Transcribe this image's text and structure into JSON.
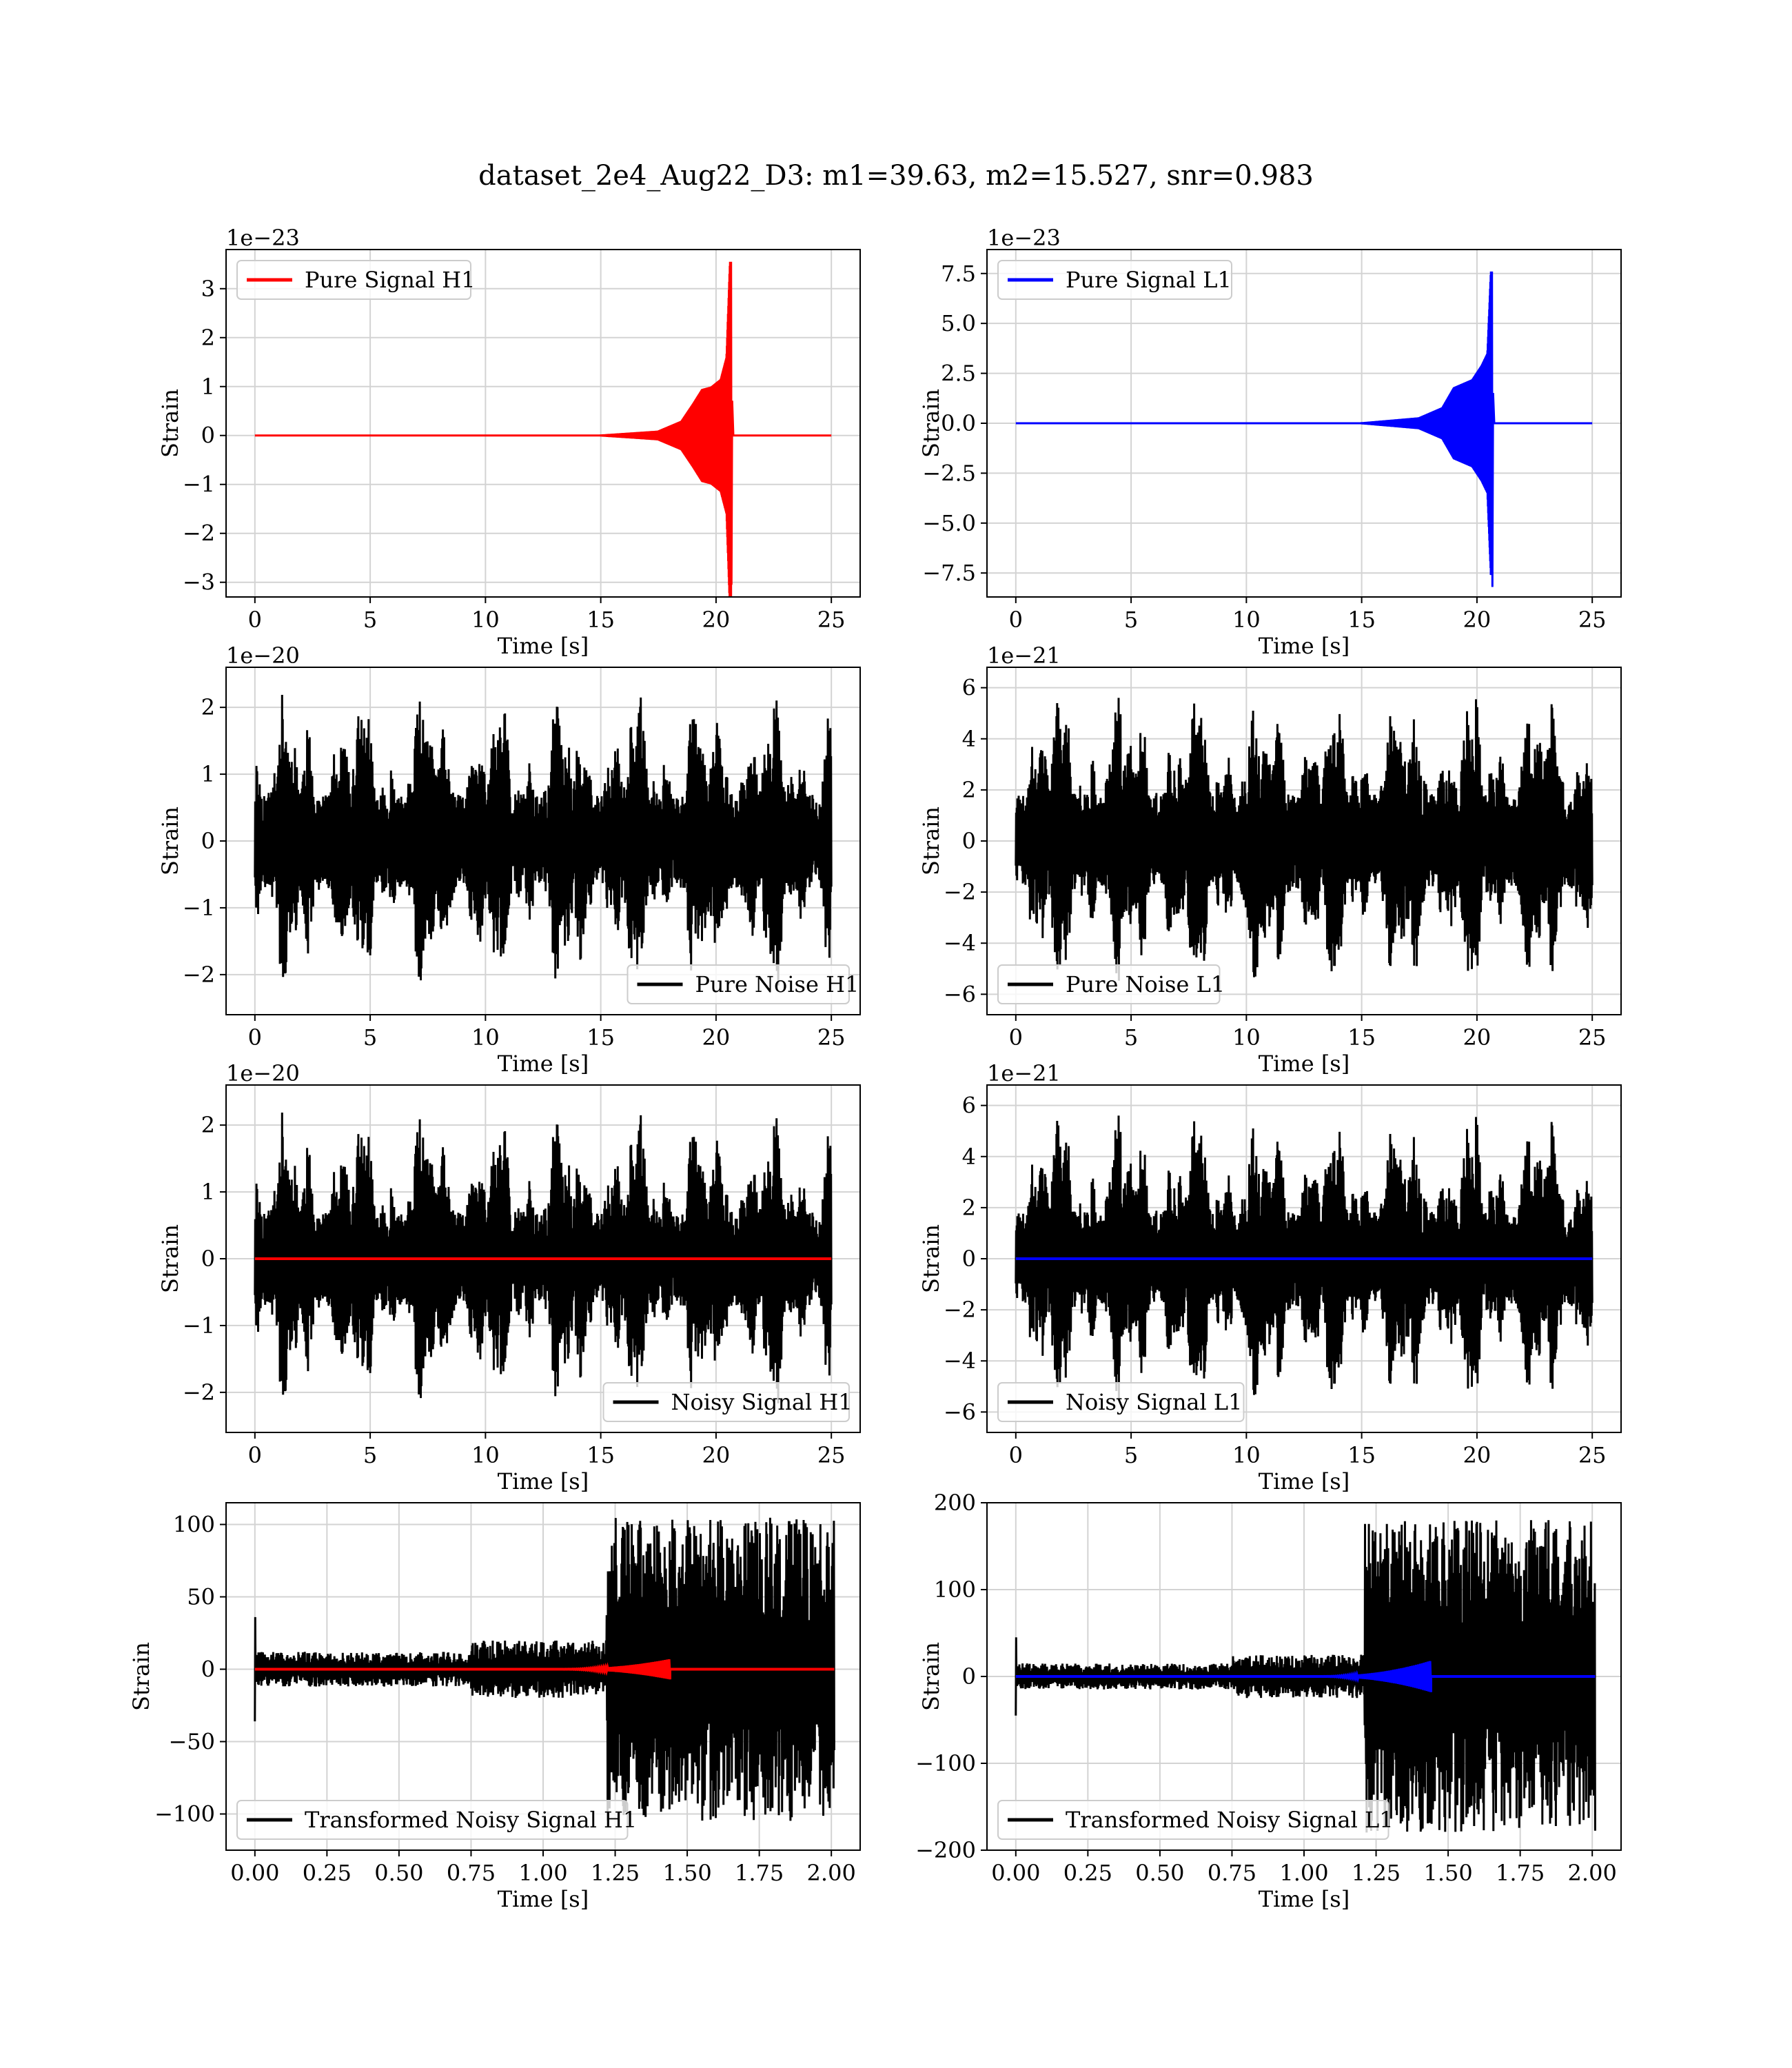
{
  "figure": {
    "title": "dataset_2e4_Aug22_D3: m1=39.63, m2=15.527, snr=0.983"
  },
  "colors": {
    "h1_signal": "#ff0000",
    "l1_signal": "#0000ff",
    "noise": "#000000",
    "grid": "#d3d3d3",
    "axes": "#000000",
    "background": "#ffffff"
  },
  "chart_data": [
    {
      "id": "pure-signal-h1",
      "type": "line",
      "kind": "chirp",
      "xlabel": "Time [s]",
      "ylabel": "Strain",
      "offset_text": "1e−23",
      "xlim": [
        -1.25,
        26.25
      ],
      "ylim": [
        -3.3,
        3.8
      ],
      "xticks": [
        0,
        5,
        10,
        15,
        20,
        25
      ],
      "xtick_labels": [
        "0",
        "5",
        "10",
        "15",
        "20",
        "25"
      ],
      "yticks": [
        -3,
        -2,
        -1,
        0,
        1,
        2,
        3
      ],
      "ytick_labels": [
        "−3",
        "−2",
        "−1",
        "0",
        "1",
        "2",
        "3"
      ],
      "legend_loc": "upper left",
      "grid": true,
      "series": [
        {
          "name": "Pure Signal H1",
          "color": "#ff0000",
          "x_start": 0,
          "x_end": 25,
          "merger": 20.65,
          "ringdown_end": 20.75,
          "peak_pos": 3.55,
          "peak_neg": -3.05,
          "envelope": [
            [
              15,
              0.02
            ],
            [
              17.5,
              0.1
            ],
            [
              18.5,
              0.3
            ],
            [
              19.0,
              0.65
            ],
            [
              19.4,
              0.95
            ],
            [
              19.8,
              1.0
            ],
            [
              20.2,
              1.15
            ],
            [
              20.45,
              1.6
            ],
            [
              20.6,
              3.55
            ]
          ]
        }
      ]
    },
    {
      "id": "pure-signal-l1",
      "type": "line",
      "kind": "chirp",
      "xlabel": "Time [s]",
      "ylabel": "Strain",
      "offset_text": "1e−23",
      "xlim": [
        -1.25,
        26.25
      ],
      "ylim": [
        -8.7,
        8.7
      ],
      "xticks": [
        0,
        5,
        10,
        15,
        20,
        25
      ],
      "xtick_labels": [
        "0",
        "5",
        "10",
        "15",
        "20",
        "25"
      ],
      "yticks": [
        -7.5,
        -5.0,
        -2.5,
        0.0,
        2.5,
        5.0,
        7.5
      ],
      "ytick_labels": [
        "−7.5",
        "−5.0",
        "−2.5",
        "0.0",
        "2.5",
        "5.0",
        "7.5"
      ],
      "legend_loc": "upper left",
      "grid": true,
      "series": [
        {
          "name": "Pure Signal L1",
          "color": "#0000ff",
          "x_start": 0,
          "x_end": 25,
          "merger": 20.65,
          "ringdown_end": 20.75,
          "peak_pos": 7.6,
          "peak_neg": -8.2,
          "envelope": [
            [
              15,
              0.05
            ],
            [
              17.5,
              0.3
            ],
            [
              18.5,
              0.8
            ],
            [
              19.0,
              1.8
            ],
            [
              19.4,
              2.0
            ],
            [
              19.8,
              2.2
            ],
            [
              20.2,
              2.9
            ],
            [
              20.45,
              3.5
            ],
            [
              20.6,
              7.6
            ]
          ]
        }
      ]
    },
    {
      "id": "pure-noise-h1",
      "type": "line",
      "kind": "noise",
      "xlabel": "Time [s]",
      "ylabel": "Strain",
      "offset_text": "1e−20",
      "xlim": [
        -1.25,
        26.25
      ],
      "ylim": [
        -2.6,
        2.6
      ],
      "xticks": [
        0,
        5,
        10,
        15,
        20,
        25
      ],
      "xtick_labels": [
        "0",
        "5",
        "10",
        "15",
        "20",
        "25"
      ],
      "yticks": [
        -2,
        -1,
        0,
        1,
        2
      ],
      "ytick_labels": [
        "−2",
        "−1",
        "0",
        "1",
        "2"
      ],
      "legend_loc": "lower right",
      "grid": true,
      "series": [
        {
          "name": "Pure Noise H1",
          "color": "#000000",
          "x_start": 0,
          "x_end": 25,
          "amp": 2.35,
          "seed": 11
        }
      ]
    },
    {
      "id": "pure-noise-l1",
      "type": "line",
      "kind": "noise",
      "xlabel": "Time [s]",
      "ylabel": "Strain",
      "offset_text": "1e−21",
      "xlim": [
        -1.25,
        26.25
      ],
      "ylim": [
        -6.8,
        6.8
      ],
      "xticks": [
        0,
        5,
        10,
        15,
        20,
        25
      ],
      "xtick_labels": [
        "0",
        "5",
        "10",
        "15",
        "20",
        "25"
      ],
      "yticks": [
        -6,
        -4,
        -2,
        0,
        2,
        4,
        6
      ],
      "ytick_labels": [
        "−6",
        "−4",
        "−2",
        "0",
        "2",
        "4",
        "6"
      ],
      "legend_loc": "lower left",
      "grid": true,
      "series": [
        {
          "name": "Pure Noise L1",
          "color": "#000000",
          "x_start": 0,
          "x_end": 25,
          "amp": 6.3,
          "seed": 23
        }
      ]
    },
    {
      "id": "noisy-signal-h1",
      "type": "line",
      "kind": "noise",
      "xlabel": "Time [s]",
      "ylabel": "Strain",
      "offset_text": "1e−20",
      "xlim": [
        -1.25,
        26.25
      ],
      "ylim": [
        -2.6,
        2.6
      ],
      "xticks": [
        0,
        5,
        10,
        15,
        20,
        25
      ],
      "xtick_labels": [
        "0",
        "5",
        "10",
        "15",
        "20",
        "25"
      ],
      "yticks": [
        -2,
        -1,
        0,
        1,
        2
      ],
      "ytick_labels": [
        "−2",
        "−1",
        "0",
        "1",
        "2"
      ],
      "legend_loc": "lower right",
      "grid": true,
      "series": [
        {
          "name": "Noisy Signal H1",
          "color": "#000000",
          "x_start": 0,
          "x_end": 25,
          "amp": 2.35,
          "seed": 11
        },
        {
          "color": "#ff0000",
          "x_start": 0,
          "x_end": 25,
          "flat": 0
        }
      ]
    },
    {
      "id": "noisy-signal-l1",
      "type": "line",
      "kind": "noise",
      "xlabel": "Time [s]",
      "ylabel": "Strain",
      "offset_text": "1e−21",
      "xlim": [
        -1.25,
        26.25
      ],
      "ylim": [
        -6.8,
        6.8
      ],
      "xticks": [
        0,
        5,
        10,
        15,
        20,
        25
      ],
      "xtick_labels": [
        "0",
        "5",
        "10",
        "15",
        "20",
        "25"
      ],
      "yticks": [
        -6,
        -4,
        -2,
        0,
        2,
        4,
        6
      ],
      "ytick_labels": [
        "−6",
        "−4",
        "−2",
        "0",
        "2",
        "4",
        "6"
      ],
      "legend_loc": "lower left",
      "grid": true,
      "series": [
        {
          "name": "Noisy Signal L1",
          "color": "#000000",
          "x_start": 0,
          "x_end": 25,
          "amp": 6.3,
          "seed": 23
        },
        {
          "color": "#0000ff",
          "x_start": 0,
          "x_end": 25,
          "flat": 0
        }
      ]
    },
    {
      "id": "transformed-noisy-signal-h1",
      "type": "line",
      "kind": "transformed",
      "xlabel": "Time [s]",
      "ylabel": "Strain",
      "offset_text": "",
      "xlim": [
        -0.1,
        2.1
      ],
      "ylim": [
        -125,
        115
      ],
      "xticks": [
        0.0,
        0.25,
        0.5,
        0.75,
        1.0,
        1.25,
        1.5,
        1.75,
        2.0
      ],
      "xtick_labels": [
        "0.00",
        "0.25",
        "0.50",
        "0.75",
        "1.00",
        "1.25",
        "1.50",
        "1.75",
        "2.00"
      ],
      "yticks": [
        -100,
        -50,
        0,
        50,
        100
      ],
      "ytick_labels": [
        "−100",
        "−50",
        "0",
        "50",
        "100"
      ],
      "legend_loc": "lower left",
      "grid": true,
      "series": [
        {
          "name": "Transformed Noisy Signal H1",
          "color": "#000000",
          "x_start": 0,
          "x_end": 2.01,
          "low_amp": 12,
          "mid_amp": 20,
          "high_amp": 105,
          "step_at": 1.22,
          "seed": 31
        },
        {
          "color": "#ff0000",
          "x_start": 0,
          "x_end": 2.01,
          "chirp_end": 1.44,
          "chirp_peak": 7
        }
      ]
    },
    {
      "id": "transformed-noisy-signal-l1",
      "type": "line",
      "kind": "transformed",
      "xlabel": "Time [s]",
      "ylabel": "Strain",
      "offset_text": "",
      "xlim": [
        -0.1,
        2.1
      ],
      "ylim": [
        -200,
        200
      ],
      "xticks": [
        0.0,
        0.25,
        0.5,
        0.75,
        1.0,
        1.25,
        1.5,
        1.75,
        2.0
      ],
      "xtick_labels": [
        "0.00",
        "0.25",
        "0.50",
        "0.75",
        "1.00",
        "1.25",
        "1.50",
        "1.75",
        "2.00"
      ],
      "yticks": [
        -200,
        -100,
        0,
        100,
        200
      ],
      "ytick_labels": [
        "−200",
        "−100",
        "0",
        "100",
        "200"
      ],
      "legend_loc": "lower left",
      "grid": true,
      "series": [
        {
          "name": "Transformed Noisy Signal L1",
          "color": "#000000",
          "x_start": 0,
          "x_end": 2.01,
          "low_amp": 15,
          "mid_amp": 25,
          "high_amp": 180,
          "step_at": 1.21,
          "seed": 47
        },
        {
          "color": "#0000ff",
          "x_start": 0,
          "x_end": 2.01,
          "chirp_end": 1.44,
          "chirp_peak": 18
        }
      ]
    }
  ]
}
